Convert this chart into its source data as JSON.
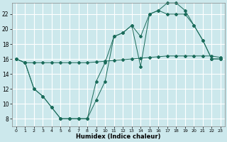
{
  "xlabel": "Humidex (Indice chaleur)",
  "bg_color": "#cce8ec",
  "grid_color": "#ffffff",
  "line_color": "#1a6b5a",
  "x_min": -0.5,
  "x_max": 23.5,
  "y_min": 7,
  "y_max": 23.5,
  "yticks": [
    8,
    10,
    12,
    14,
    16,
    18,
    20,
    22
  ],
  "xticks": [
    0,
    1,
    2,
    3,
    4,
    5,
    6,
    7,
    8,
    9,
    10,
    11,
    12,
    13,
    14,
    15,
    16,
    17,
    18,
    19,
    20,
    21,
    22,
    23
  ],
  "series": {
    "line1": {
      "x": [
        0,
        1,
        2,
        3,
        4,
        5,
        6,
        7,
        8,
        9,
        10,
        11,
        12,
        13,
        14,
        15,
        16,
        17,
        18,
        19,
        20,
        21,
        22,
        23
      ],
      "y": [
        16,
        15.5,
        12,
        11,
        9.5,
        8,
        8,
        8,
        8,
        10.5,
        13,
        19,
        19.5,
        20.5,
        15,
        22,
        22.5,
        23.5,
        23.5,
        22.5,
        20.5,
        18.5,
        16,
        16
      ]
    },
    "line2": {
      "x": [
        0,
        1,
        2,
        3,
        4,
        5,
        6,
        7,
        8,
        9,
        10,
        11,
        12,
        13,
        14,
        15,
        16,
        17,
        18,
        19,
        20,
        21,
        22,
        23
      ],
      "y": [
        16,
        15.5,
        12,
        11,
        9.5,
        8,
        8,
        8,
        8,
        13,
        15.5,
        19,
        19.5,
        20.5,
        19,
        22,
        22.5,
        22,
        22,
        22,
        20.5,
        18.5,
        16,
        16
      ]
    },
    "line3": {
      "x": [
        0,
        1,
        2,
        3,
        4,
        5,
        6,
        7,
        8,
        9,
        10,
        11,
        12,
        13,
        14,
        15,
        16,
        17,
        18,
        19,
        20,
        21,
        22,
        23
      ],
      "y": [
        16,
        15.5,
        15.5,
        15.5,
        15.5,
        15.5,
        15.5,
        15.5,
        15.5,
        15.6,
        15.7,
        15.8,
        15.9,
        16.0,
        16.1,
        16.2,
        16.3,
        16.4,
        16.4,
        16.4,
        16.4,
        16.4,
        16.4,
        16.2
      ]
    }
  }
}
